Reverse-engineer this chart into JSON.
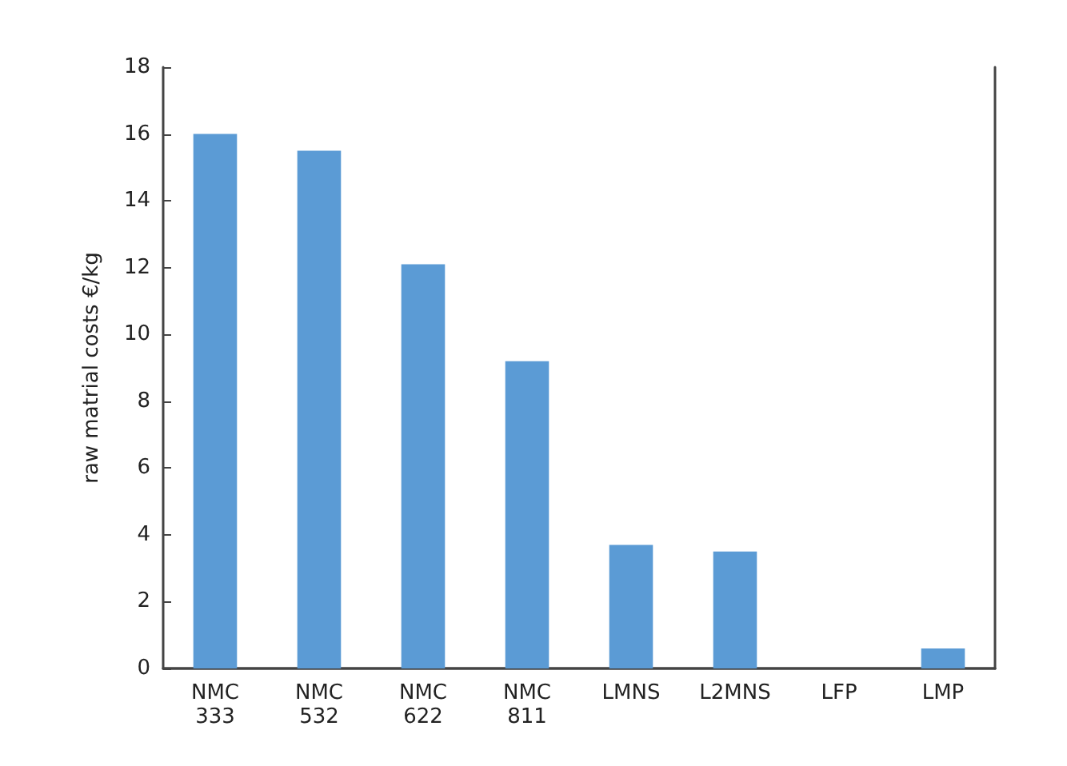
{
  "chart_data": {
    "type": "bar",
    "ylabel": "raw matrial costs €/kg",
    "categories": [
      "NMC\n333",
      "NMC\n532",
      "NMC\n622",
      "NMC\n811",
      "LMNS",
      "L2MNS",
      "LFP",
      "LMP"
    ],
    "values": [
      16.0,
      15.5,
      12.1,
      9.2,
      3.7,
      3.5,
      0,
      0.6
    ],
    "color": "#5b9bd5",
    "ylim": [
      0,
      18
    ],
    "yticks": [
      0,
      2,
      4,
      6,
      8,
      10,
      12,
      14,
      16,
      18
    ],
    "grid": false
  }
}
